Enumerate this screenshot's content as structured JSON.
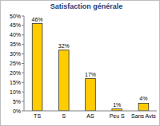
{
  "chart_data": {
    "type": "bar",
    "title": "Satisfaction générale",
    "categories": [
      "TS",
      "S",
      "AS",
      "Peu S",
      "Sans Avis"
    ],
    "values": [
      46,
      32,
      17,
      1,
      4
    ],
    "value_labels": [
      "46%",
      "32%",
      "17%",
      "1%",
      "4%"
    ],
    "color": "#ffcc00",
    "ylim": [
      0,
      50
    ],
    "yticks": [
      {
        "value": 0,
        "label": "0%"
      },
      {
        "value": 5,
        "label": "5%"
      },
      {
        "value": 10,
        "label": "10%"
      },
      {
        "value": 15,
        "label": "15%"
      },
      {
        "value": 20,
        "label": "20%"
      },
      {
        "value": 25,
        "label": "25%"
      },
      {
        "value": 30,
        "label": "30%"
      },
      {
        "value": 35,
        "label": "35%"
      },
      {
        "value": 40,
        "label": "40%"
      },
      {
        "value": 45,
        "label": "45%"
      },
      {
        "value": 50,
        "label": "50%"
      }
    ],
    "grid": false,
    "data_labels": true
  }
}
